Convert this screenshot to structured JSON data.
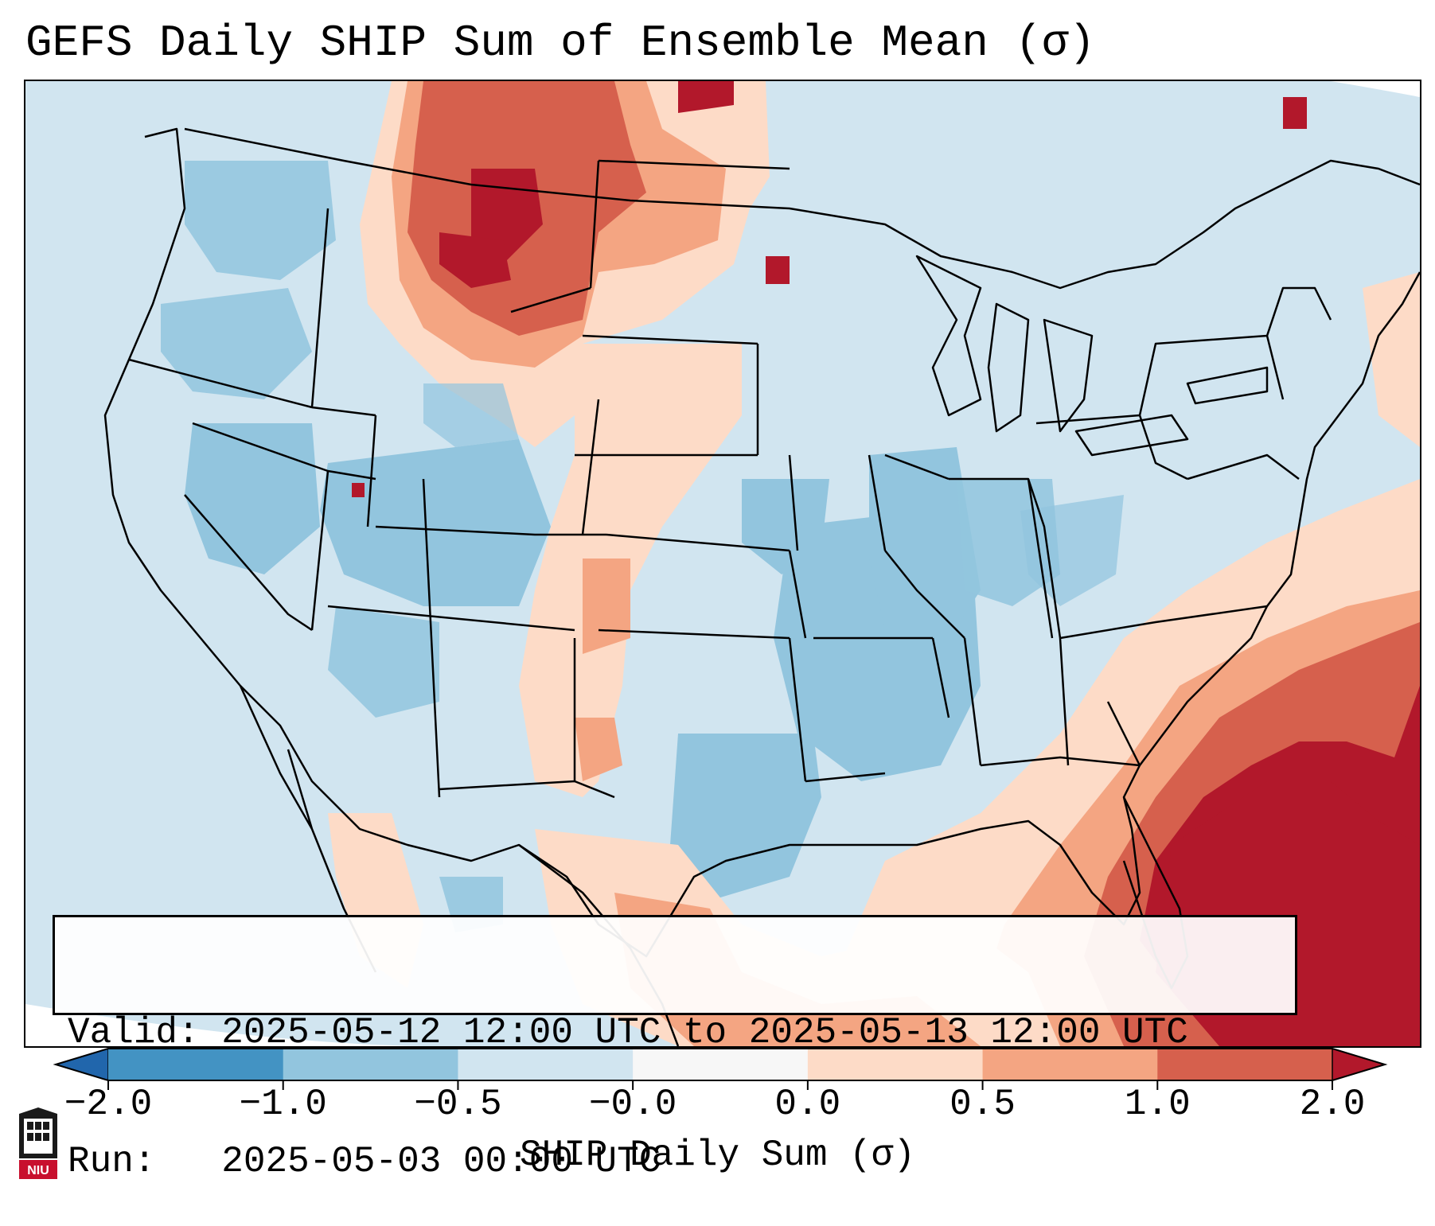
{
  "title": "GEFS Daily SHIP Sum of Ensemble Mean (σ)",
  "info": {
    "valid_label": "Valid:",
    "valid_value": "2025-05-12 12:00 UTC to 2025-05-13 12:00 UTC",
    "run_label": "Run:",
    "run_value": "2025-05-03 00:00 UTC"
  },
  "colorbar": {
    "label": "SHIP Daily Sum (σ)",
    "ticks": [
      "−2.0",
      "−1.0",
      "−0.5",
      "−0.0",
      "0.0",
      "0.5",
      "1.0",
      "2.0"
    ],
    "bin_colors": [
      "#2166ac",
      "#4393c3",
      "#92c5de",
      "#d1e5f0",
      "#f7f7f7",
      "#fddbc7",
      "#f4a582",
      "#d6604d",
      "#b2182b"
    ]
  },
  "logo": {
    "text": "NIU",
    "color": "#c8102e"
  },
  "map": {
    "region": "Contiguous United States",
    "background_color": "#d1e5f0",
    "field_description": "anomaly of daily SHIP sum in standard deviations"
  }
}
